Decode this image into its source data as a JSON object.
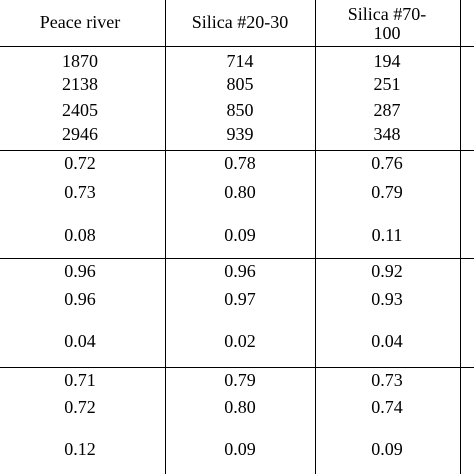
{
  "table": {
    "header": [
      [
        "Peace river"
      ],
      [
        "Silica #20-30"
      ],
      [
        "Silica #70-",
        "100"
      ]
    ],
    "groups": [
      {
        "rows": [
          [
            "1870",
            "714",
            "194"
          ],
          [
            "2138",
            "805",
            "251"
          ],
          [
            "2405",
            "850",
            "287"
          ],
          [
            "2946",
            "939",
            "348"
          ]
        ]
      },
      {
        "rows": [
          [
            "0.72",
            "0.78",
            "0.76"
          ],
          [
            "0.73",
            "0.80",
            "0.79"
          ],
          [
            "0.08",
            "0.09",
            "0.11"
          ]
        ]
      },
      {
        "rows": [
          [
            "0.96",
            "0.96",
            "0.92"
          ],
          [
            "0.96",
            "0.97",
            "0.93"
          ],
          [
            "0.04",
            "0.02",
            "0.04"
          ]
        ]
      },
      {
        "rows": [
          [
            "0.71",
            "0.79",
            "0.73"
          ],
          [
            "0.72",
            "0.80",
            "0.74"
          ],
          [
            "0.12",
            "0.09",
            "0.09"
          ]
        ]
      }
    ]
  }
}
